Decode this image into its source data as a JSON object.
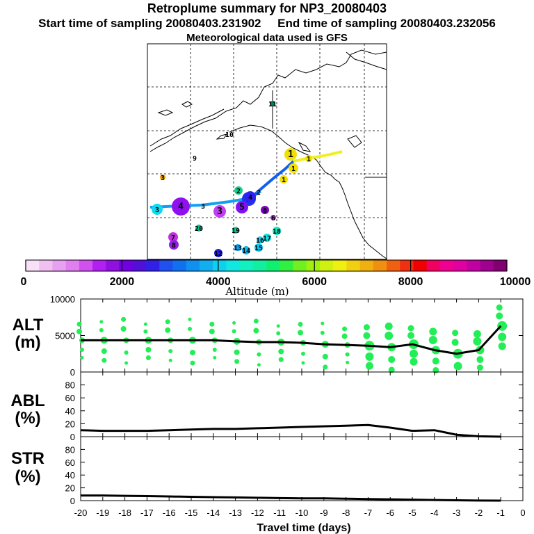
{
  "header": {
    "title": "Retroplume summary for NP3_20080403",
    "start_label": "Start time of sampling 20080403.231902",
    "end_label": "End time of sampling 20080403.232056",
    "met_label": "Meteorological data used is GFS"
  },
  "colorbar": {
    "label": "Altitude (m)",
    "ticks": [
      "0",
      "2000",
      "4000",
      "6000",
      "8000",
      "10000"
    ],
    "colors": [
      "#f8e0f8",
      "#f0c0f0",
      "#e8a0f0",
      "#e080f0",
      "#d050f0",
      "#b020f0",
      "#9010e0",
      "#7000e0",
      "#5010d8",
      "#3020e8",
      "#2050f0",
      "#1070f0",
      "#1090f0",
      "#10b0f0",
      "#10d0f0",
      "#10e8e0",
      "#10f0c0",
      "#10f0a0",
      "#10f070",
      "#30f040",
      "#70f020",
      "#a0f010",
      "#d0f010",
      "#f0f010",
      "#f0d010",
      "#f0b010",
      "#f09010",
      "#f06010",
      "#f03010",
      "#f00000",
      "#f00060",
      "#f00090",
      "#e000a0",
      "#c000a0",
      "#a00090",
      "#800070"
    ]
  },
  "map": {
    "markers": [
      {
        "n": "1",
        "c": "#f0e000"
      },
      {
        "n": "1",
        "c": "#f0e000"
      },
      {
        "n": "1",
        "c": "#f0e000"
      },
      {
        "n": "1",
        "c": "#f0e000"
      },
      {
        "n": "2",
        "c": "#10d090"
      },
      {
        "n": "2",
        "c": "#2030f0"
      },
      {
        "n": "2",
        "c": "#000"
      },
      {
        "n": "3",
        "c": "#c040f0"
      },
      {
        "n": "3",
        "c": "#10d8f0"
      },
      {
        "n": "3",
        "c": "#f0a000"
      },
      {
        "n": "3",
        "c": "#000"
      },
      {
        "n": "4",
        "c": "#9010f0"
      },
      {
        "n": "4",
        "c": "#3020f0"
      },
      {
        "n": "5",
        "c": "#8010f0"
      },
      {
        "n": "6",
        "c": "#b030d0"
      },
      {
        "n": "6",
        "c": "#8000c0"
      },
      {
        "n": "7",
        "c": "#c030e0"
      },
      {
        "n": "8",
        "c": "#9020e0"
      },
      {
        "n": "9",
        "c": "#000"
      },
      {
        "n": "10",
        "c": "#000"
      },
      {
        "n": "11",
        "c": "#008060"
      },
      {
        "n": "12",
        "c": "#2020d0"
      },
      {
        "n": "13",
        "c": "#10a0f0"
      },
      {
        "n": "14",
        "c": "#10b8f0"
      },
      {
        "n": "15",
        "c": "#10c8f0"
      },
      {
        "n": "16",
        "c": "#10d0f0"
      },
      {
        "n": "17",
        "c": "#10e0e0"
      },
      {
        "n": "18",
        "c": "#10e8c0"
      },
      {
        "n": "19",
        "c": "#10d0a0"
      },
      {
        "n": "20",
        "c": "#10c090"
      }
    ]
  },
  "panels": {
    "alt_label": [
      "ALT",
      "(m)"
    ],
    "abl_label": [
      "ABL",
      "(%)"
    ],
    "str_label": [
      "STR",
      "(%)"
    ],
    "xlabel": "Travel time (days)"
  },
  "chart_data": [
    {
      "type": "line",
      "title": "ALT",
      "ylabel": "(m)",
      "ylim": [
        0,
        10000
      ],
      "yticks": [
        "0",
        "5000",
        "10000"
      ],
      "x": [
        -20,
        -19,
        -18,
        -17,
        -16,
        -15,
        -14,
        -13,
        -12,
        -11,
        -10,
        -9,
        -8,
        -7,
        -6,
        -5,
        -4,
        -3,
        -2,
        -1
      ],
      "values": [
        4350,
        4350,
        4350,
        4350,
        4350,
        4350,
        4350,
        4200,
        4100,
        4100,
        4000,
        3800,
        3700,
        3600,
        3400,
        3800,
        3000,
        2500,
        3000,
        6300
      ],
      "xlim": [
        -20,
        0
      ],
      "scatter_color": "#22ee55"
    },
    {
      "type": "line",
      "title": "ABL",
      "ylabel": "(%)",
      "ylim": [
        0,
        100
      ],
      "yticks": [
        "0",
        "20",
        "40",
        "60",
        "80"
      ],
      "x": [
        -20,
        -19,
        -18,
        -17,
        -16,
        -15,
        -14,
        -13,
        -12,
        -11,
        -10,
        -9,
        -8,
        -7,
        -6,
        -5,
        -4,
        -3,
        -2,
        -1
      ],
      "values": [
        10,
        9,
        9,
        9,
        10,
        11,
        12,
        12,
        13,
        14,
        15,
        16,
        17,
        18,
        14,
        9,
        10,
        3,
        0.5,
        0
      ],
      "xlim": [
        -20,
        0
      ]
    },
    {
      "type": "line",
      "title": "STR",
      "ylabel": "(%)",
      "ylim": [
        0,
        100
      ],
      "yticks": [
        "0",
        "20",
        "40",
        "60",
        "80"
      ],
      "x": [
        -20,
        -19,
        -18,
        -17,
        -16,
        -15,
        -14,
        -13,
        -12,
        -11,
        -10,
        -9,
        -8,
        -7,
        -6,
        -5,
        -4,
        -3,
        -2,
        -1
      ],
      "values": [
        8,
        8,
        7.5,
        7,
        6.5,
        6,
        5.5,
        5,
        4.5,
        4,
        3.5,
        3.5,
        3,
        2.5,
        2,
        1.5,
        1,
        0.5,
        0.2,
        0
      ],
      "xlim": [
        -20,
        0
      ],
      "xticks": [
        "-20",
        "-19",
        "-18",
        "-17",
        "-16",
        "-15",
        "-14",
        "-13",
        "-12",
        "-11",
        "-10",
        "-9",
        "-8",
        "-7",
        "-6",
        "-5",
        "-4",
        "-3",
        "-2",
        "-1",
        "0"
      ]
    }
  ]
}
